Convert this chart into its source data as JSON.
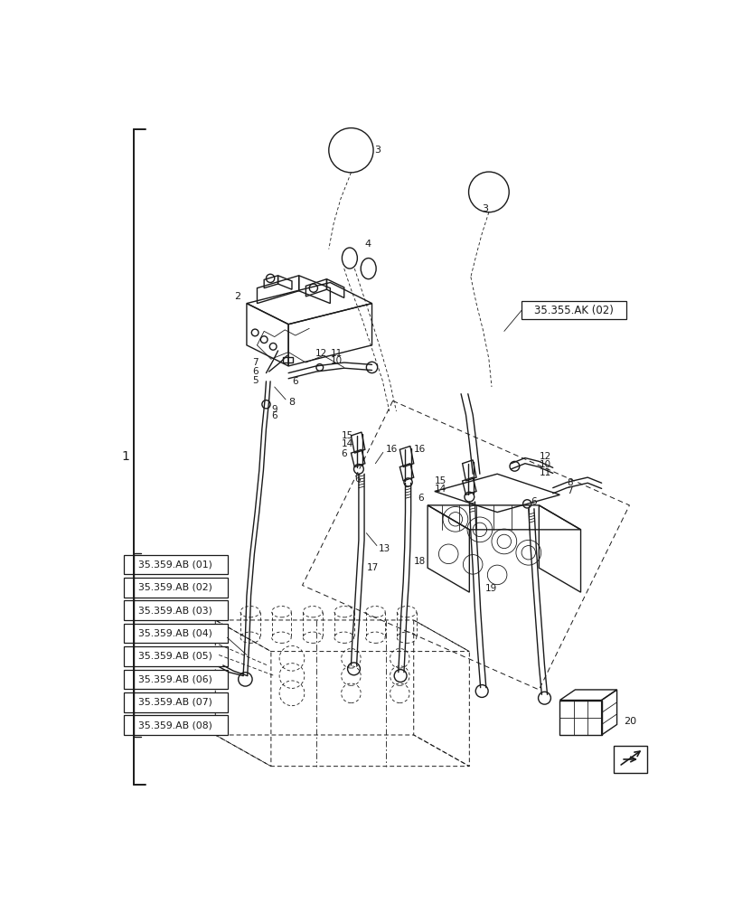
{
  "bg_color": "#ffffff",
  "line_color": "#1a1a1a",
  "figure_width": 8.12,
  "figure_height": 10.0,
  "dpi": 100,
  "ref_label_02": "35.355.AK (02)",
  "sub_refs": [
    "35.359.AB (01)",
    "35.359.AB (02)",
    "35.359.AB (03)",
    "35.359.AB (04)",
    "35.359.AB (05)",
    "35.359.AB (06)",
    "35.359.AB (07)",
    "35.359.AB (08)"
  ]
}
